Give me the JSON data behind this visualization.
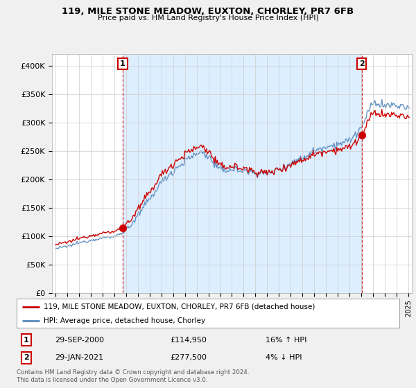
{
  "title": "119, MILE STONE MEADOW, EUXTON, CHORLEY, PR7 6FB",
  "subtitle": "Price paid vs. HM Land Registry's House Price Index (HPI)",
  "legend_line1": "119, MILE STONE MEADOW, EUXTON, CHORLEY, PR7 6FB (detached house)",
  "legend_line2": "HPI: Average price, detached house, Chorley",
  "marker1_date": "29-SEP-2000",
  "marker1_price": "£114,950",
  "marker1_hpi": "16% ↑ HPI",
  "marker2_date": "29-JAN-2021",
  "marker2_price": "£277,500",
  "marker2_hpi": "4% ↓ HPI",
  "footnote": "Contains HM Land Registry data © Crown copyright and database right 2024.\nThis data is licensed under the Open Government Licence v3.0.",
  "red_color": "#cc0000",
  "blue_color": "#5588bb",
  "shade_color": "#ddeeff",
  "background_color": "#f0f0f0",
  "plot_bg_color": "#ffffff",
  "grid_color": "#cccccc",
  "ylim": [
    0,
    420000
  ],
  "yticks": [
    0,
    50000,
    100000,
    150000,
    200000,
    250000,
    300000,
    350000,
    400000
  ],
  "ytick_labels": [
    "£0",
    "£50K",
    "£100K",
    "£150K",
    "£200K",
    "£250K",
    "£300K",
    "£350K",
    "£400K"
  ],
  "sale1_year": 2000,
  "sale1_month": 9,
  "sale1_price": 114950,
  "sale2_year": 2021,
  "sale2_month": 1,
  "sale2_price": 277500
}
